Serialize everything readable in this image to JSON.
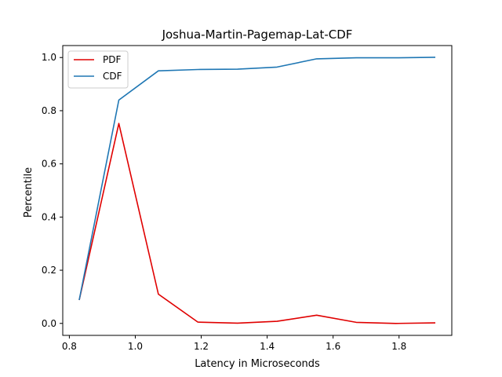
{
  "chart_data": {
    "type": "line",
    "title": "Joshua-Martin-Pagemap-Lat-CDF",
    "xlabel": "Latency in Microseconds",
    "ylabel": "Percentile",
    "xlim": [
      0.78,
      1.96
    ],
    "ylim": [
      -0.045,
      1.045
    ],
    "x_ticks": [
      0.8,
      1.0,
      1.2,
      1.4,
      1.6,
      1.8
    ],
    "x_tick_labels": [
      "0.8",
      "1.0",
      "1.2",
      "1.4",
      "1.6",
      "1.8"
    ],
    "y_ticks": [
      0.0,
      0.2,
      0.4,
      0.6,
      0.8,
      1.0
    ],
    "y_tick_labels": [
      "0.0",
      "0.2",
      "0.4",
      "0.6",
      "0.8",
      "1.0"
    ],
    "grid": false,
    "legend_position": "top-left",
    "x": [
      0.83,
      0.95,
      1.07,
      1.19,
      1.31,
      1.43,
      1.55,
      1.67,
      1.79,
      1.91
    ],
    "series": [
      {
        "name": "PDF",
        "color": "#e00000",
        "values": [
          0.088,
          0.752,
          0.11,
          0.005,
          0.001,
          0.008,
          0.031,
          0.004,
          0.0,
          0.002
        ]
      },
      {
        "name": "CDF",
        "color": "#1f77b4",
        "values": [
          0.088,
          0.84,
          0.95,
          0.955,
          0.956,
          0.964,
          0.995,
          0.999,
          0.999,
          1.001
        ]
      }
    ]
  }
}
